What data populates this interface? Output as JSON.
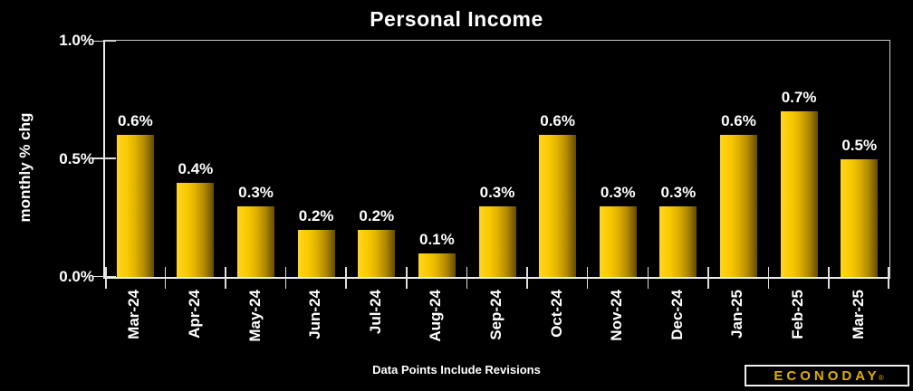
{
  "title": "Personal Income",
  "y_axis": {
    "label": "monthly % chg"
  },
  "footer": {
    "note": "Data Points Include Revisions"
  },
  "logo": {
    "text": "ECONODAY",
    "reg": "®"
  },
  "colors": {
    "background": "#000000",
    "text": "#ffffff",
    "axis": "#ededed",
    "tick": "#dedede",
    "bar_gradient_left": "#ffd51f",
    "bar_gradient_right": "#634c00",
    "logo_gold": "#e3ae00"
  },
  "chart_data": {
    "type": "bar",
    "title": "Personal Income",
    "xlabel": "",
    "ylabel": "monthly % chg",
    "ylim": [
      0,
      1.0
    ],
    "yticks": [
      0,
      0.5,
      1.0
    ],
    "ytick_labels": [
      "0.0%",
      "0.5%",
      "1.0%"
    ],
    "grid": false,
    "legend": false,
    "bar_orientation": "vertical",
    "categories": [
      "Mar-24",
      "Apr-24",
      "May-24",
      "Jun-24",
      "Jul-24",
      "Aug-24",
      "Sep-24",
      "Oct-24",
      "Nov-24",
      "Dec-24",
      "Jan-25",
      "Feb-25",
      "Mar-25"
    ],
    "values": [
      0.6,
      0.4,
      0.3,
      0.2,
      0.2,
      0.1,
      0.3,
      0.6,
      0.3,
      0.3,
      0.6,
      0.7,
      0.5
    ],
    "data_labels": [
      "0.6%",
      "0.4%",
      "0.3%",
      "0.2%",
      "0.2%",
      "0.1%",
      "0.3%",
      "0.6%",
      "0.3%",
      "0.3%",
      "0.6%",
      "0.7%",
      "0.5%"
    ],
    "annotation": "Data Points Include Revisions"
  }
}
